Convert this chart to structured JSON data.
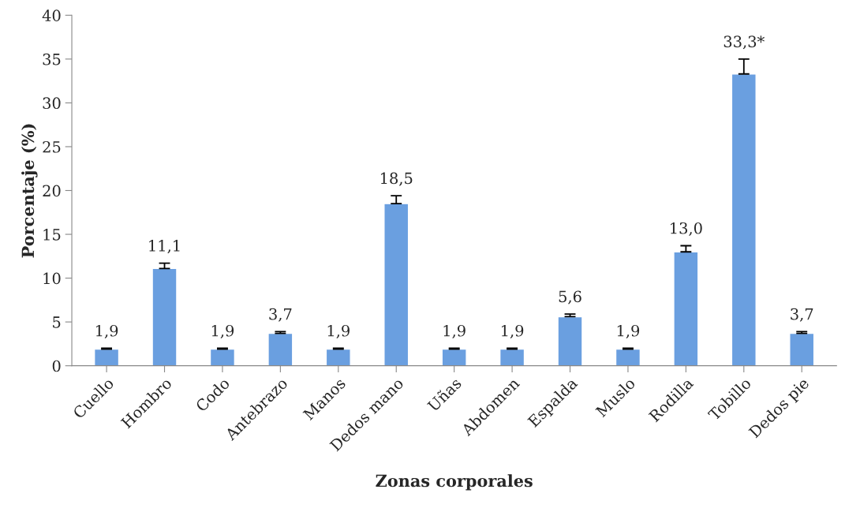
{
  "chart_data": {
    "type": "bar",
    "xlabel": "Zonas corporales",
    "ylabel": "Porcentaje (%)",
    "categories": [
      "Cuello",
      "Hombro",
      "Codo",
      "Antebrazo",
      "Manos",
      "Dedos mano",
      "Uñas",
      "Abdomen",
      "Espalda",
      "Muslo",
      "Rodilla",
      "Tobillo",
      "Dedos pie"
    ],
    "values": [
      1.9,
      11.1,
      1.9,
      3.7,
      1.9,
      18.5,
      1.9,
      1.9,
      5.6,
      1.9,
      13.0,
      33.3,
      3.7
    ],
    "value_labels": [
      "1,9",
      "11,1",
      "1,9",
      "3,7",
      "1,9",
      "18,5",
      "1,9",
      "1,9",
      "5,6",
      "1,9",
      "13,0",
      "33,3*",
      "3,7"
    ],
    "errors": [
      [
        1.9,
        2.0
      ],
      [
        11.1,
        11.7
      ],
      [
        1.9,
        2.0
      ],
      [
        3.7,
        3.9
      ],
      [
        1.9,
        2.0
      ],
      [
        18.5,
        19.4
      ],
      [
        1.9,
        2.0
      ],
      [
        1.9,
        2.0
      ],
      [
        5.6,
        5.9
      ],
      [
        1.9,
        2.0
      ],
      [
        13.0,
        13.7
      ],
      [
        33.3,
        35.0
      ],
      [
        3.7,
        3.9
      ]
    ],
    "color": "#6a9fe0",
    "ylim": [
      0,
      40
    ],
    "yticks": [
      0,
      5,
      10,
      15,
      20,
      25,
      30,
      35,
      40
    ],
    "grid": false,
    "legend": false
  }
}
